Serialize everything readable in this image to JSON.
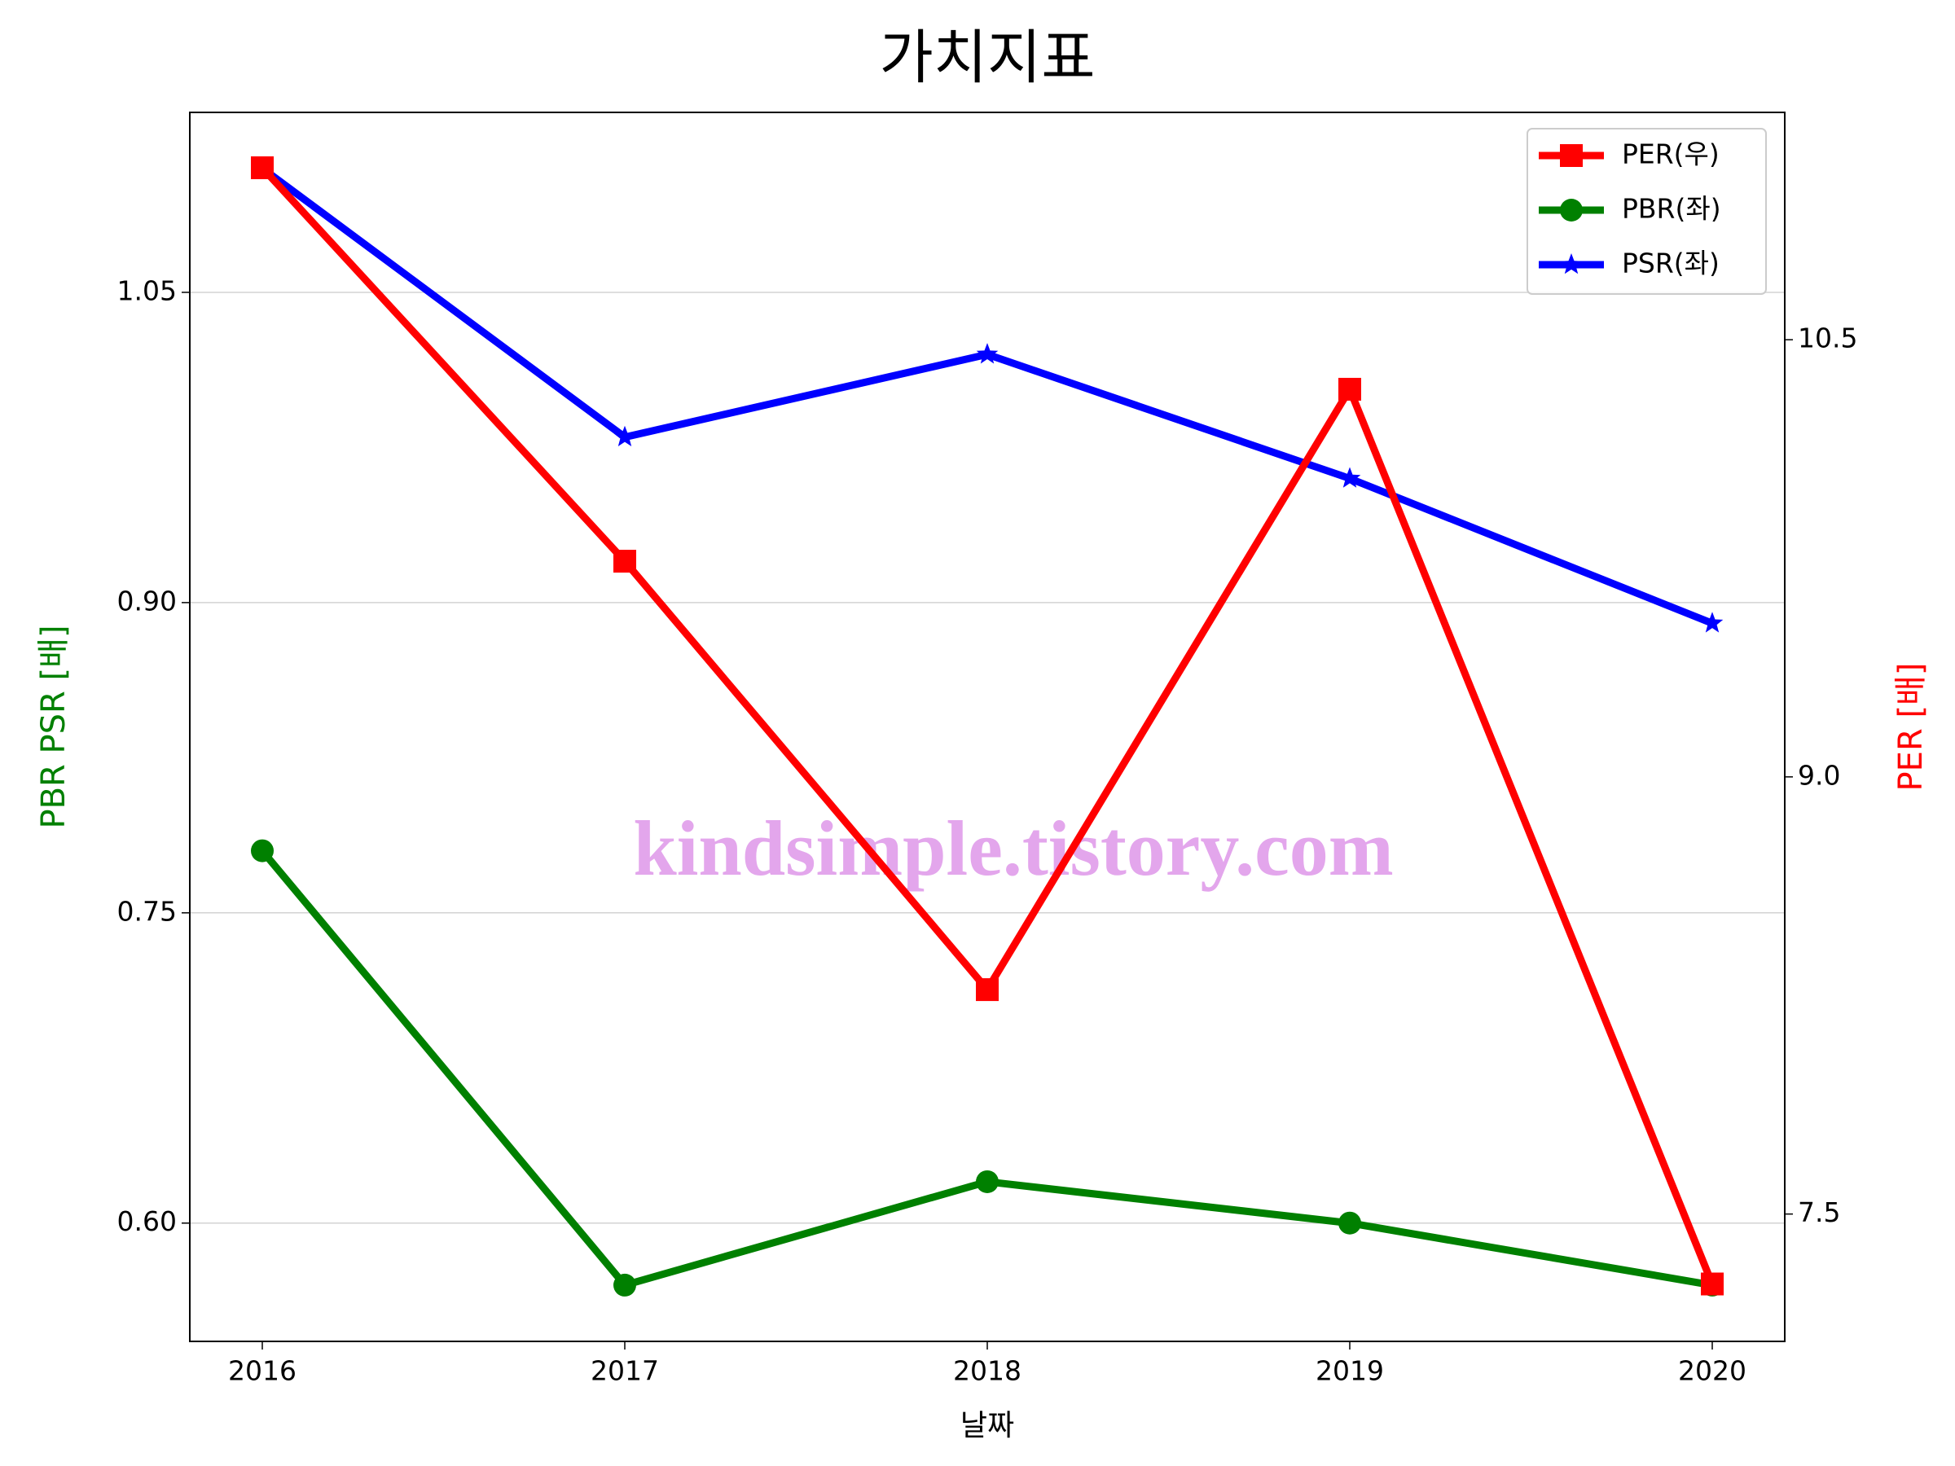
{
  "chart_data": {
    "type": "line",
    "title": "가치지표",
    "xlabel": "날짜",
    "ylabel": "PBR PSR [배]",
    "y2label": "PER [배]",
    "ylabel_color": "#008000",
    "y2label_color": "#ff0000",
    "watermark": "kindsimple.tistory.com",
    "x": [
      2016,
      2017,
      2018,
      2019,
      2020
    ],
    "xlim": [
      2015.8,
      2020.2
    ],
    "xticks": [
      2016,
      2017,
      2018,
      2019,
      2020
    ],
    "ylim": [
      0.5428,
      1.137
    ],
    "yticks": [
      {
        "value": 0.6,
        "label": "0.60"
      },
      0.75,
      {
        "value": 0.9,
        "label": "0.90"
      },
      1.05
    ],
    "y2lim": [
      7.063,
      11.28
    ],
    "y2ticks": [
      7.5,
      {
        "value": 9.0,
        "label": "9.0"
      },
      10.5
    ],
    "grid": true,
    "legend": "upper right",
    "series": [
      {
        "name": "PER(우)",
        "color": "#ff0000",
        "marker": "square",
        "axis": "y2",
        "values": [
          11.09,
          9.74,
          8.27,
          10.33,
          7.26
        ]
      },
      {
        "name": "PBR(좌)",
        "color": "#008000",
        "marker": "circle",
        "values": [
          0.78,
          0.57,
          0.62,
          0.6,
          0.57
        ]
      },
      {
        "name": "PSR(좌)",
        "color": "#0000ff",
        "marker": "star",
        "values": [
          1.11,
          0.98,
          1.02,
          0.96,
          0.89
        ]
      }
    ]
  }
}
